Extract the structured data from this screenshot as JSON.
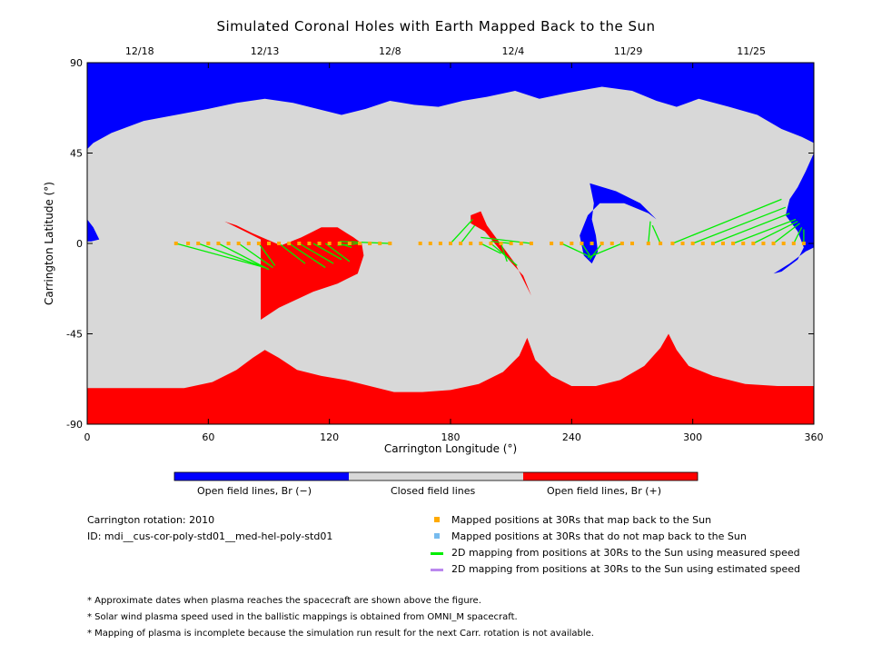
{
  "title": "Simulated Coronal Holes with Earth Mapped Back to the Sun",
  "chart_data": {
    "type": "map",
    "xlabel": "Carrington Longitude (°)",
    "ylabel": "Carrington Latitude (°)",
    "xlim": [
      0,
      360
    ],
    "ylim": [
      -90,
      90
    ],
    "x_ticks": [
      0,
      60,
      120,
      180,
      240,
      300,
      360
    ],
    "y_ticks": [
      90,
      45,
      0,
      -45,
      -90
    ],
    "y_tick_labels": [
      "90",
      "45",
      "0",
      "-45",
      "-90"
    ],
    "date_ticks": [
      {
        "label": "12/18",
        "lon": 26
      },
      {
        "label": "12/13",
        "lon": 88
      },
      {
        "label": "12/8",
        "lon": 150
      },
      {
        "label": "12/4",
        "lon": 211
      },
      {
        "label": "11/29",
        "lon": 268
      },
      {
        "label": "11/25",
        "lon": 329
      }
    ],
    "colors": {
      "open_negative": "#0000ff",
      "closed": "#d8d8d8",
      "open_positive": "#ff0000",
      "mapped": "#ffaa00",
      "measured": "#00ee00",
      "estimated": "#bb88ee",
      "unmapped": "#77bbee"
    },
    "mapped_positions_lon": [
      44,
      50,
      55,
      60,
      65,
      70,
      75,
      80,
      85,
      90,
      95,
      100,
      105,
      110,
      115,
      120,
      125,
      130,
      135,
      140,
      145,
      150,
      165,
      170,
      175,
      180,
      185,
      190,
      195,
      200,
      205,
      210,
      215,
      220,
      230,
      235,
      240,
      245,
      250,
      255,
      260,
      265,
      270,
      278,
      284,
      290,
      295,
      300,
      305,
      310,
      315,
      320,
      325,
      330,
      335,
      340,
      345,
      350,
      355
    ],
    "footpoint_mappings": [
      {
        "from": 44,
        "to": [
          88,
          -12
        ]
      },
      {
        "from": 55,
        "to": [
          88,
          -12
        ]
      },
      {
        "from": 65,
        "to": [
          90,
          -13
        ]
      },
      {
        "from": 75,
        "to": [
          92,
          -12
        ]
      },
      {
        "from": 85,
        "to": [
          93,
          -11
        ]
      },
      {
        "from": 95,
        "to": [
          108,
          -10
        ]
      },
      {
        "from": 100,
        "to": [
          118,
          -12
        ]
      },
      {
        "from": 105,
        "to": [
          122,
          -10
        ]
      },
      {
        "from": 112,
        "to": [
          126,
          -8
        ]
      },
      {
        "from": 118,
        "to": [
          130,
          -9
        ]
      },
      {
        "from": 125,
        "to": [
          131,
          -2
        ]
      },
      {
        "from": 135,
        "to": [
          124,
          -1
        ]
      },
      {
        "from": 150,
        "to": [
          125,
          1
        ]
      },
      {
        "from": 180,
        "to": [
          191,
          12
        ]
      },
      {
        "from": 185,
        "to": [
          192,
          9
        ]
      },
      {
        "from": 195,
        "to": [
          205,
          -5
        ]
      },
      {
        "from": 200,
        "to": [
          213,
          -11
        ]
      },
      {
        "from": 205,
        "to": [
          208,
          -9
        ]
      },
      {
        "from": 210,
        "to": [
          200,
          1
        ]
      },
      {
        "from": 220,
        "to": [
          195,
          3
        ]
      },
      {
        "from": 235,
        "to": [
          250,
          -7
        ]
      },
      {
        "from": 245,
        "to": [
          249,
          -6
        ]
      },
      {
        "from": 255,
        "to": [
          249,
          -8
        ]
      },
      {
        "from": 265,
        "to": [
          248,
          -7
        ]
      },
      {
        "from": 278,
        "to": [
          279,
          11
        ]
      },
      {
        "from": 284,
        "to": [
          280,
          9
        ]
      },
      {
        "from": 290,
        "to": [
          344,
          22
        ]
      },
      {
        "from": 300,
        "to": [
          346,
          18
        ]
      },
      {
        "from": 310,
        "to": [
          348,
          15
        ]
      },
      {
        "from": 320,
        "to": [
          351,
          12
        ]
      },
      {
        "from": 330,
        "to": [
          352,
          11
        ]
      },
      {
        "from": 340,
        "to": [
          353,
          10
        ]
      },
      {
        "from": 350,
        "to": [
          354,
          8
        ]
      },
      {
        "from": 355,
        "to": [
          355,
          7
        ]
      }
    ]
  },
  "colorbar": {
    "labels": [
      "Open field lines, Br (−)",
      "Closed field lines",
      "Open field lines, Br (+)"
    ]
  },
  "info": {
    "rotation": "Carrington rotation: 2010",
    "id": "ID: mdi__cus-cor-poly-std01__med-hel-poly-std01"
  },
  "legend": [
    {
      "label": "Mapped positions at 30Rs that map back to the Sun",
      "kind": "square",
      "color": "#ffaa00"
    },
    {
      "label": "Mapped positions at 30Rs that do not map back to the Sun",
      "kind": "square",
      "color": "#77bbee"
    },
    {
      "label": "2D mapping from positions at 30Rs to the Sun using measured speed",
      "kind": "line",
      "color": "#00ee00"
    },
    {
      "label": "2D mapping from positions at 30Rs to the Sun using estimated speed",
      "kind": "line",
      "color": "#bb88ee"
    }
  ],
  "notes": [
    "* Approximate dates when plasma reaches the spacecraft are shown above the figure.",
    "* Solar wind plasma speed used in the ballistic mappings is obtained from OMNI_M spacecraft.",
    "* Mapping of plasma is incomplete because the simulation run result for the next Carr. rotation is not available."
  ]
}
